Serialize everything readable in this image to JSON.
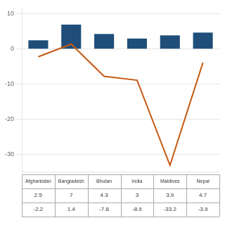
{
  "chart_data": {
    "type": "bar",
    "categories": [
      "Afghanistan",
      "Bangladesh",
      "Bhutan",
      "India",
      "Maldives",
      "Nepal"
    ],
    "series": [
      {
        "type": "bar",
        "color": "#1F4E79",
        "values": [
          2.5,
          7.0,
          4.3,
          3.0,
          3.9,
          4.7
        ]
      },
      {
        "type": "line",
        "color": "#C55A11",
        "values": [
          -2.2,
          1.4,
          -7.8,
          -8.9,
          -33.2,
          -3.9
        ]
      }
    ],
    "ylim": [
      -35,
      12
    ],
    "yticks": [
      -30,
      -20,
      -10,
      0,
      10
    ],
    "grid": true,
    "tick_labels": "y"
  }
}
